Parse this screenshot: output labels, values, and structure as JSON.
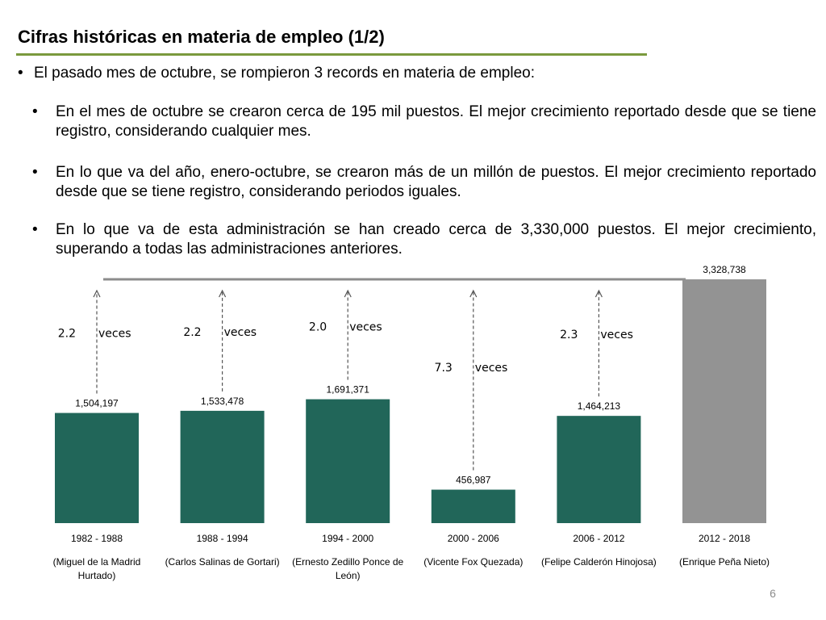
{
  "slide": {
    "title": "Cifras históricas en materia de empleo (1/2)",
    "intro": "El pasado mes de octubre, se rompieron 3 records en materia de empleo:",
    "bullets": [
      "En el mes de octubre se crearon cerca de 195 mil puestos. El mejor crecimiento reportado desde que se tiene registro, considerando cualquier mes.",
      "En lo que va del año, enero-octubre, se crearon más de un millón de puestos. El mejor crecimiento reportado desde que se tiene registro, considerando periodos iguales.",
      "En lo que va de esta administración se han creado cerca de 3,330,000 puestos. El mejor crecimiento, superando a todas las administraciones anteriores."
    ],
    "bullet_glyph": "•",
    "page_number": "6"
  },
  "chart_data": {
    "type": "bar",
    "categories": [
      "1982 - 1988",
      "1988 - 1994",
      "1994 - 2000",
      "2000 - 2006",
      "2006 - 2012",
      "2012 - 2018"
    ],
    "administrations": [
      "(Miguel de la Madrid Hurtado)",
      "(Carlos Salinas de Gortari)",
      "(Ernesto Zedillo Ponce de León)",
      "(Vicente Fox Quezada)",
      "(Felipe Calderón Hinojosa)",
      "(Enrique Peña Nieto)"
    ],
    "values": [
      1504197,
      1533478,
      1691371,
      456987,
      1464213,
      3328738
    ],
    "value_labels": [
      "1,504,197",
      "1,533,478",
      "1,691,371",
      "456,987",
      "1,464,213",
      "3,328,738"
    ],
    "multipliers": [
      "2.2",
      "2.2",
      "2.0",
      "7.3",
      "2.3",
      null
    ],
    "multiplier_word": "veces",
    "ylim": [
      0,
      3328738
    ],
    "colors": {
      "default": "#216659",
      "highlight": "#939393",
      "reference_line": "#8c8c8c"
    },
    "grid": false,
    "title": "",
    "xlabel": "",
    "ylabel": ""
  }
}
